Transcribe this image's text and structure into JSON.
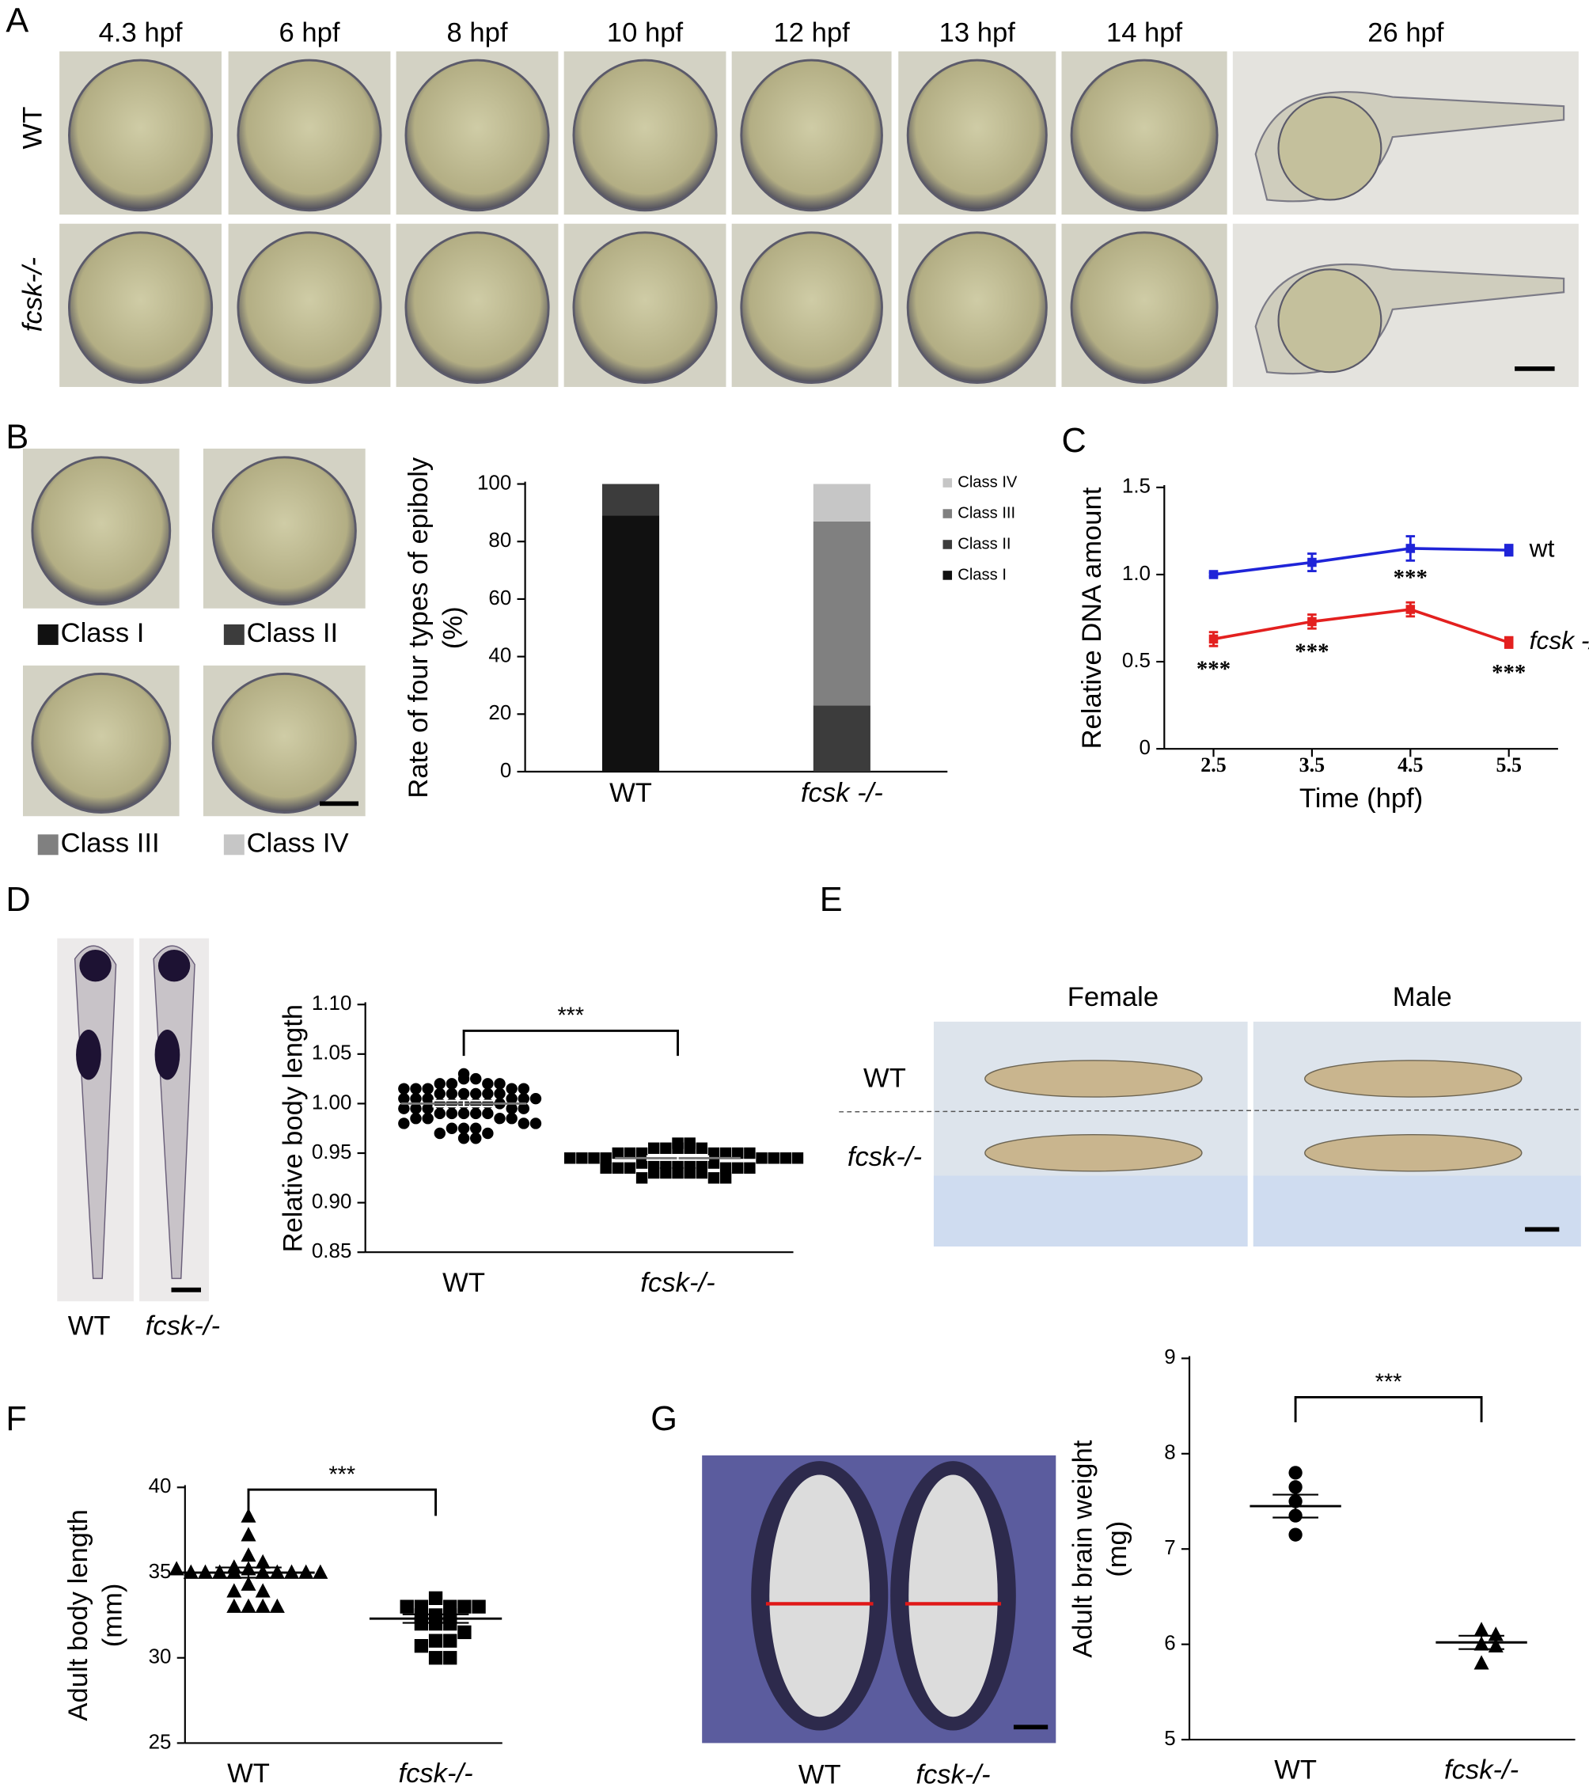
{
  "panels": {
    "letters": [
      "A",
      "B",
      "C",
      "D",
      "E",
      "F",
      "G"
    ]
  },
  "panel_a": {
    "stages": [
      "4.3 hpf",
      "6 hpf",
      "8 hpf",
      "10 hpf",
      "12 hpf",
      "13 hpf",
      "14 hpf",
      "26 hpf"
    ],
    "rows": [
      "WT",
      "fcsk-/-"
    ]
  },
  "panel_b": {
    "classes": [
      "Class I",
      "Class II",
      "Class III",
      "Class IV"
    ]
  },
  "panel_d": {
    "labels": [
      "WT",
      "fcsk-/-"
    ]
  },
  "panel_e": {
    "columns": [
      "Female",
      "Male"
    ],
    "rows": [
      "WT",
      "fcsk-/-"
    ]
  },
  "panel_g": {
    "labels": [
      "WT",
      "fcsk-/-"
    ]
  },
  "chart_data": [
    {
      "type": "stacked_bar",
      "ylabel": [
        "Rate of four types of epiboly",
        "(%)"
      ],
      "categories": [
        "WT",
        "fcsk -/-"
      ],
      "series": [
        {
          "name": "Class I",
          "color": "#111111",
          "values": [
            89,
            0
          ]
        },
        {
          "name": "Class II",
          "color": "#3c3c3c",
          "values": [
            11,
            23
          ]
        },
        {
          "name": "Class III",
          "color": "#808080",
          "values": [
            0,
            64
          ]
        },
        {
          "name": "Class IV",
          "color": "#c6c6c6",
          "values": [
            0,
            13
          ]
        }
      ],
      "ylim": [
        0,
        100
      ],
      "yticks": [
        0,
        20,
        40,
        60,
        80,
        100
      ]
    },
    {
      "type": "line",
      "xlabel": "Time (hpf)",
      "ylabel": "Relative DNA amount",
      "x": [
        2.5,
        3.5,
        4.5,
        5.5
      ],
      "series": [
        {
          "name": "wt",
          "color": "#1f24d8",
          "values": [
            1.0,
            1.07,
            1.15,
            1.14
          ],
          "errors": [
            0.01,
            0.05,
            0.07,
            0.03
          ]
        },
        {
          "name": "fcsk -/-",
          "color": "#e3201f",
          "values": [
            0.63,
            0.73,
            0.8,
            0.61
          ],
          "errors": [
            0.04,
            0.04,
            0.04,
            0.03
          ]
        }
      ],
      "annotations": [
        "***",
        "***",
        "***",
        "***"
      ],
      "xlim": [
        2,
        6
      ],
      "xticks": [
        2.5,
        3.5,
        4.5,
        5.5
      ],
      "ylim": [
        0,
        1.5
      ],
      "yticks": [
        0,
        0.5,
        {
          "value": 1,
          "label": "1.0"
        },
        1.5
      ]
    },
    {
      "type": "dot",
      "ylabel": [
        "Relative body length"
      ],
      "categories": [
        "WT",
        "fcsk-/-"
      ],
      "markers": [
        "circle",
        "square"
      ],
      "values": [
        [
          1.03,
          1.025,
          1.025,
          1.02,
          1.02,
          1.02,
          1.02,
          1.015,
          1.015,
          1.015,
          1.015,
          1.015,
          1.01,
          1.01,
          1.01,
          1.01,
          1.01,
          1.01,
          1.005,
          1.005,
          1.005,
          1.005,
          1.005,
          1.005,
          1.0,
          1.0,
          1.0,
          1.0,
          1.0,
          1.0,
          0.995,
          0.995,
          0.995,
          0.995,
          0.995,
          0.99,
          0.99,
          0.99,
          0.99,
          0.99,
          0.985,
          0.985,
          0.985,
          0.985,
          0.98,
          0.98,
          0.98,
          0.975,
          0.975,
          0.975,
          0.97,
          0.97,
          0.965,
          0.965
        ],
        [
          0.96,
          0.96,
          0.955,
          0.955,
          0.955,
          0.955,
          0.955,
          0.95,
          0.95,
          0.95,
          0.95,
          0.95,
          0.95,
          0.95,
          0.945,
          0.945,
          0.945,
          0.945,
          0.945,
          0.945,
          0.945,
          0.945,
          0.94,
          0.94,
          0.94,
          0.94,
          0.94,
          0.94,
          0.94,
          0.935,
          0.935,
          0.935,
          0.935,
          0.935,
          0.935,
          0.93,
          0.93,
          0.93,
          0.93,
          0.93,
          0.925,
          0.925,
          0.925
        ]
      ],
      "means": [
        1.0,
        0.945
      ],
      "sems": [
        0.003,
        0.002
      ],
      "annotation": "***",
      "ylim": [
        0.85,
        1.1
      ],
      "yticks": [
        0.85,
        {
          "value": 0.9,
          "label": "0.90"
        },
        0.95,
        {
          "value": 1,
          "label": "1.00"
        },
        1.05,
        {
          "value": 1.1,
          "label": "1.10"
        }
      ]
    },
    {
      "type": "dot",
      "ylabel": [
        "Adult body length",
        "(mm)"
      ],
      "categories": [
        "WT",
        "fcsk-/-"
      ],
      "markers": [
        "triangle",
        "square"
      ],
      "values": [
        [
          38.3,
          37.2,
          36.0,
          35.6,
          35.3,
          35.2,
          35,
          35,
          35,
          35,
          35,
          35,
          35,
          35,
          35,
          35.2,
          34.3,
          33.9,
          33.9,
          33,
          33,
          33,
          33
        ],
        [
          33.5,
          33,
          33,
          33,
          33,
          33,
          32.5,
          32.5,
          32.5,
          32,
          32,
          32,
          31.5,
          31,
          31,
          30.7,
          30,
          30
        ]
      ],
      "means": [
        35.0,
        32.3
      ],
      "sems": [
        0.3,
        0.25
      ],
      "annotation": "***",
      "ylim": [
        25,
        40
      ],
      "yticks": [
        25,
        30,
        35,
        40
      ]
    },
    {
      "type": "dot",
      "ylabel": [
        "Adult brain weight",
        "(mg)"
      ],
      "categories": [
        "WT",
        "fcsk-/-"
      ],
      "markers": [
        "circle",
        "triangle"
      ],
      "values": [
        [
          7.8,
          7.65,
          7.5,
          7.35,
          7.15
        ],
        [
          6.15,
          6.1,
          6.0,
          5.98,
          5.8
        ]
      ],
      "means": [
        7.45,
        6.02
      ],
      "sems": [
        0.12,
        0.07
      ],
      "annotation": "***",
      "ylim": [
        5,
        9
      ],
      "yticks": [
        5,
        6,
        7,
        8,
        9
      ]
    }
  ]
}
